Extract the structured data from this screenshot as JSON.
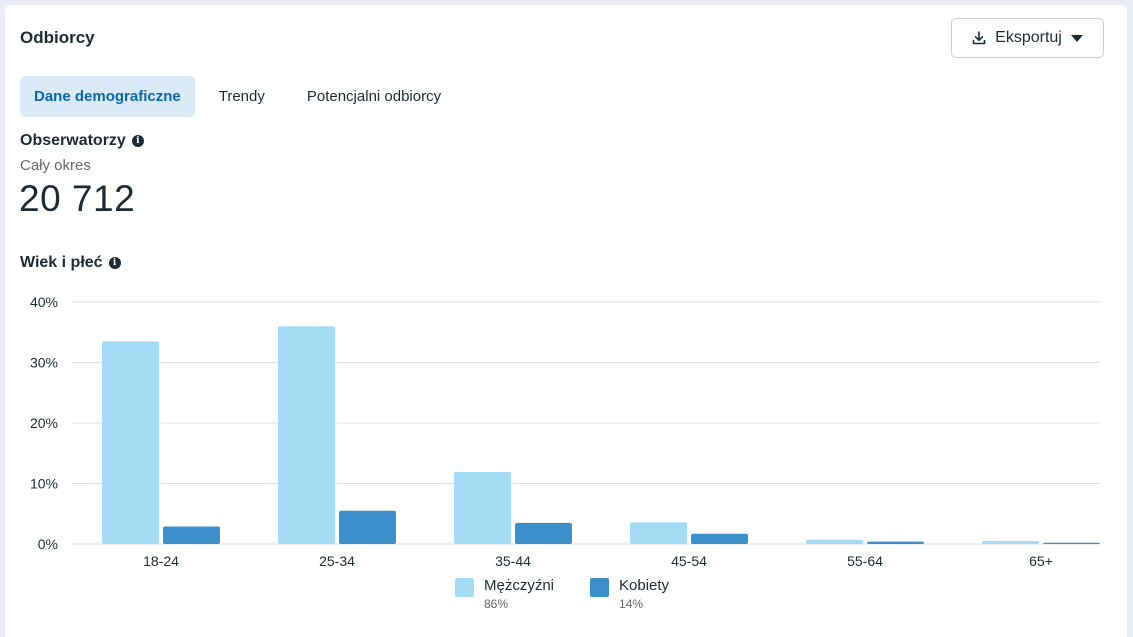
{
  "card": {
    "title": "Odbiorcy",
    "export_label": "Eksportuj"
  },
  "tabs": [
    {
      "label": "Dane demograficzne",
      "active": true
    },
    {
      "label": "Trendy",
      "active": false
    },
    {
      "label": "Potencjalni odbiorcy",
      "active": false
    }
  ],
  "followers": {
    "title": "Obserwatorzy",
    "period": "Cały okres",
    "value": "20 712"
  },
  "age_gender": {
    "title": "Wiek i płeć"
  },
  "legend": [
    {
      "name": "Mężczyźni",
      "pct": "86%",
      "color": "#a3dbf5"
    },
    {
      "name": "Kobiety",
      "pct": "14%",
      "color": "#3d8fcb"
    }
  ],
  "chart_data": {
    "type": "bar",
    "categories": [
      "18-24",
      "25-34",
      "35-44",
      "45-54",
      "55-64",
      "65+"
    ],
    "series": [
      {
        "name": "Mężczyźni",
        "values": [
          33.5,
          36.0,
          11.9,
          3.6,
          0.7,
          0.5
        ],
        "color": "#a3dbf5"
      },
      {
        "name": "Kobiety",
        "values": [
          2.9,
          5.5,
          3.5,
          1.7,
          0.4,
          0.2
        ],
        "color": "#3d8fcb"
      }
    ],
    "y_ticks": [
      "0%",
      "10%",
      "20%",
      "30%",
      "40%"
    ],
    "ylim": [
      0,
      40
    ],
    "grid": true
  }
}
